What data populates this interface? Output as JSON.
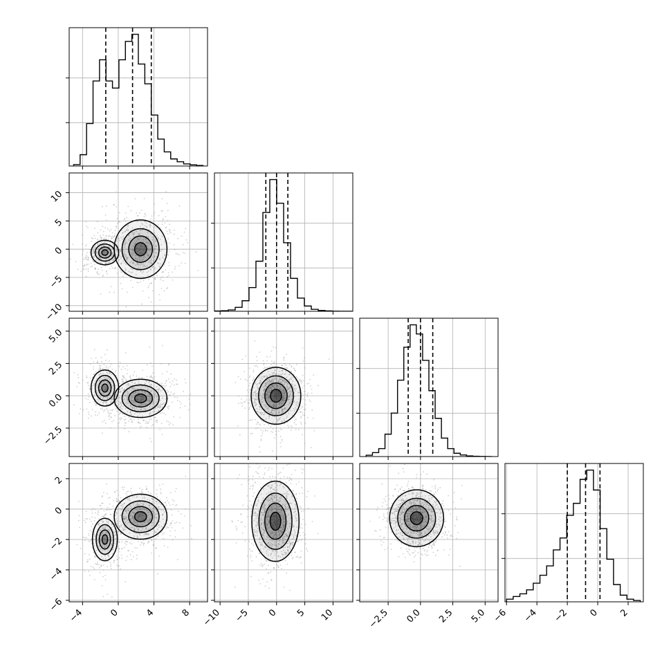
{
  "chart_data": {
    "type": "corner",
    "n_params": 4,
    "parameters": [
      {
        "range": [
          -5.5,
          10
        ],
        "ticks": [
          -4,
          0,
          4,
          8
        ],
        "tick_labels": [
          "−4",
          "0",
          "4",
          "8"
        ],
        "quantiles": [
          -1.4,
          1.6,
          3.7
        ],
        "hist_edges_range": [
          -5,
          9.5
        ],
        "hist_counts": [
          0.01,
          0.08,
          0.3,
          0.6,
          0.75,
          0.6,
          0.55,
          0.75,
          0.88,
          0.93,
          0.72,
          0.58,
          0.36,
          0.19,
          0.1,
          0.05,
          0.03,
          0.015,
          0.008,
          0.004
        ]
      },
      {
        "range": [
          -11,
          13.5
        ],
        "ticks": [
          -10,
          -5,
          0,
          5,
          10
        ],
        "tick_labels": [
          "−10",
          "−5",
          "0",
          "5",
          "10"
        ],
        "quantiles": [
          -1.9,
          0.0,
          2.0
        ],
        "hist_edges_range": [
          -11,
          13.5
        ],
        "hist_counts": [
          0.002,
          0.004,
          0.01,
          0.03,
          0.08,
          0.18,
          0.38,
          0.75,
          1.0,
          0.82,
          0.52,
          0.25,
          0.1,
          0.04,
          0.015,
          0.006,
          0.003,
          0.001,
          0.0005,
          0.0002
        ]
      },
      {
        "range": [
          -4.7,
          6
        ],
        "ticks": [
          -2.5,
          0.0,
          2.5,
          5.0
        ],
        "tick_labels": [
          "−2.5",
          "0.0",
          "2.5",
          "5.0"
        ],
        "quantiles": [
          -0.95,
          0.0,
          0.95
        ],
        "hist_edges_range": [
          -4.2,
          5.5
        ],
        "hist_counts": [
          0.01,
          0.03,
          0.06,
          0.17,
          0.33,
          0.58,
          0.83,
          1.0,
          0.93,
          0.73,
          0.5,
          0.29,
          0.14,
          0.06,
          0.025,
          0.012,
          0.005,
          0.002,
          0.001,
          0.0005
        ]
      },
      {
        "range": [
          -6.1,
          3
        ],
        "ticks": [
          -6,
          -4,
          -2,
          0,
          2
        ],
        "tick_labels": [
          "−6",
          "−4",
          "−2",
          "0",
          "2"
        ],
        "quantiles": [
          -2.0,
          -0.8,
          0.15
        ],
        "hist_edges_range": [
          -6.0,
          2.8
        ],
        "hist_counts": [
          0.02,
          0.04,
          0.06,
          0.09,
          0.14,
          0.2,
          0.27,
          0.39,
          0.48,
          0.65,
          0.74,
          0.92,
          0.99,
          0.84,
          0.55,
          0.32,
          0.13,
          0.05,
          0.02,
          0.01
        ]
      }
    ],
    "y_axis_labels": {
      "1": {
        "ticks": [
          -10,
          -5,
          0,
          5,
          10
        ],
        "tick_labels": [
          "−10",
          "−5",
          "0",
          "5",
          "10"
        ]
      },
      "2": {
        "ticks": [
          -2.5,
          0.0,
          2.5,
          5.0
        ],
        "tick_labels": [
          "−2.5",
          "0.0",
          "2.5",
          "5.0"
        ]
      },
      "3": {
        "ticks": [
          -6,
          -4,
          -2,
          0,
          2
        ],
        "tick_labels": [
          "−6",
          "−4",
          "−2",
          "0",
          "2"
        ]
      }
    },
    "pair_modes": {
      "1-0": [
        {
          "x": -1.5,
          "y": -0.6,
          "sx": 1.0,
          "sy": 1.4,
          "w": 0.35
        },
        {
          "x": 2.5,
          "y": 0.0,
          "sx": 1.6,
          "sy": 2.8,
          "w": 0.65
        }
      ],
      "2-0": [
        {
          "x": -1.5,
          "y": 0.6,
          "sx": 1.0,
          "sy": 0.9,
          "w": 0.35
        },
        {
          "x": 2.5,
          "y": -0.2,
          "sx": 1.6,
          "sy": 0.8,
          "w": 0.65
        }
      ],
      "2-1": [
        {
          "x": -0.1,
          "y": 0.0,
          "sx": 2.0,
          "sy": 1.0,
          "w": 1.0
        }
      ],
      "3-0": [
        {
          "x": -1.5,
          "y": -2.0,
          "sx": 0.9,
          "sy": 0.9,
          "w": 0.35
        },
        {
          "x": 2.5,
          "y": -0.5,
          "sx": 1.6,
          "sy": 0.8,
          "w": 0.65
        }
      ],
      "3-1": [
        {
          "x": -0.2,
          "y": -0.8,
          "sx": 1.9,
          "sy": 1.2,
          "w": 1.0
        }
      ],
      "3-2": [
        {
          "x": -0.3,
          "y": -0.6,
          "sx": 0.95,
          "sy": 0.85,
          "w": 1.0
        }
      ]
    },
    "grid": true,
    "colors": {
      "hist": "#000000",
      "scatter": "#a0a0a0",
      "contour": "#000000",
      "grid": "#b0b0b0"
    }
  }
}
